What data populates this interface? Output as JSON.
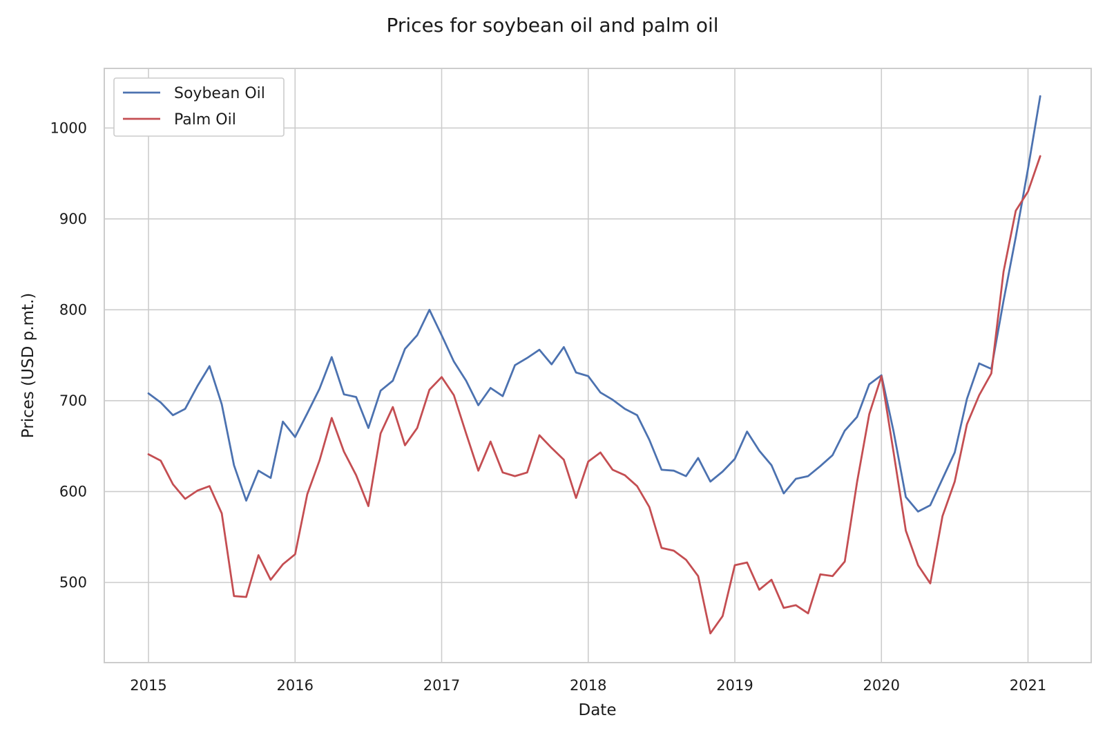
{
  "chart_data": {
    "type": "line",
    "title": "Prices for soybean oil and palm oil",
    "xlabel": "Date",
    "ylabel": "Prices (USD p.mt.)",
    "x_ticks": [
      "2015",
      "2016",
      "2017",
      "2018",
      "2019",
      "2020",
      "2021"
    ],
    "y_ticks": [
      500,
      600,
      700,
      800,
      900,
      1000
    ],
    "xlim": [
      "2014-09",
      "2021-05"
    ],
    "ylim": [
      430,
      1067
    ],
    "grid": true,
    "legend_position": "top-left",
    "x": [
      "2015-01",
      "2015-02",
      "2015-03",
      "2015-04",
      "2015-05",
      "2015-06",
      "2015-07",
      "2015-08",
      "2015-09",
      "2015-10",
      "2015-11",
      "2015-12",
      "2016-01",
      "2016-02",
      "2016-03",
      "2016-04",
      "2016-05",
      "2016-06",
      "2016-07",
      "2016-08",
      "2016-09",
      "2016-10",
      "2016-11",
      "2016-12",
      "2017-01",
      "2017-02",
      "2017-03",
      "2017-04",
      "2017-05",
      "2017-06",
      "2017-07",
      "2017-08",
      "2017-09",
      "2017-10",
      "2017-11",
      "2017-12",
      "2018-01",
      "2018-02",
      "2018-03",
      "2018-04",
      "2018-05",
      "2018-06",
      "2018-07",
      "2018-08",
      "2018-09",
      "2018-10",
      "2018-11",
      "2018-12",
      "2019-01",
      "2019-02",
      "2019-03",
      "2019-04",
      "2019-05",
      "2019-06",
      "2019-07",
      "2019-08",
      "2019-09",
      "2019-10",
      "2019-11",
      "2019-12",
      "2020-01",
      "2020-02",
      "2020-03",
      "2020-04",
      "2020-05",
      "2020-06",
      "2020-07",
      "2020-08",
      "2020-09",
      "2020-10",
      "2020-11",
      "2020-12",
      "2021-01",
      "2021-02"
    ],
    "series": [
      {
        "name": "Soybean Oil",
        "color": "#4c72b0",
        "values": [
          708,
          698,
          684,
          691,
          716,
          738,
          696,
          629,
          590,
          623,
          615,
          677,
          660,
          686,
          713,
          748,
          707,
          704,
          670,
          711,
          722,
          757,
          772,
          800,
          772,
          743,
          722,
          695,
          714,
          705,
          739,
          747,
          756,
          740,
          759,
          731,
          727,
          709,
          701,
          691,
          684,
          657,
          624,
          623,
          617,
          637,
          611,
          622,
          636,
          666,
          645,
          629,
          598,
          614,
          617,
          628,
          640,
          667,
          682,
          718,
          728,
          666,
          594,
          578,
          585,
          614,
          643,
          702,
          741,
          735,
          810,
          880,
          955,
          1035
        ]
      },
      {
        "name": "Palm Oil",
        "color": "#c44e52",
        "values": [
          641,
          634,
          608,
          592,
          601,
          606,
          576,
          485,
          484,
          530,
          503,
          520,
          531,
          597,
          634,
          681,
          644,
          618,
          584,
          664,
          693,
          651,
          670,
          712,
          726,
          706,
          664,
          623,
          655,
          621,
          617,
          621,
          662,
          648,
          635,
          593,
          633,
          643,
          624,
          618,
          606,
          583,
          538,
          535,
          525,
          507,
          444,
          463,
          519,
          522,
          492,
          503,
          472,
          475,
          466,
          509,
          507,
          523,
          610,
          685,
          727,
          643,
          557,
          519,
          499,
          573,
          611,
          674,
          706,
          730,
          842,
          909,
          930,
          969
        ]
      }
    ]
  }
}
